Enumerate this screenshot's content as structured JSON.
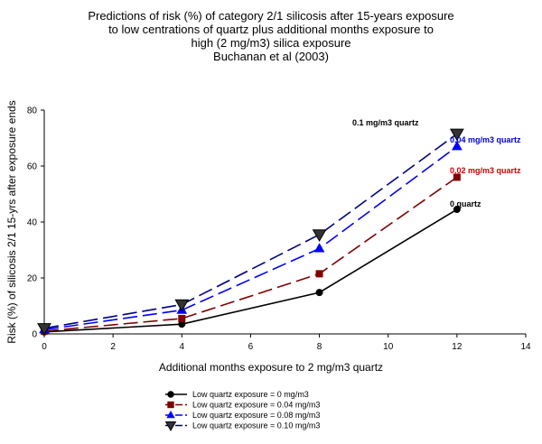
{
  "chart_data": {
    "type": "line",
    "title_lines": [
      "Predictions of risk (%) of category 2/1 silicosis after 15-years exposure",
      "to low centrations of quartz plus additional months exposure to",
      "high (2 mg/m3) silica exposure",
      "Buchanan et al (2003)"
    ],
    "xlabel": "Additional months exposure to 2 mg/m3 quartz",
    "ylabel": "Risk (%) of silicosis 2/1 15-yrs after exposure ends",
    "xlim": [
      0,
      14
    ],
    "ylim": [
      0,
      80
    ],
    "x_ticks": [
      "0",
      "2",
      "4",
      "6",
      "8",
      "10",
      "12",
      "14"
    ],
    "y_ticks": [
      "0",
      "20",
      "40",
      "60",
      "80"
    ],
    "grid": false,
    "legend_position": "bottom",
    "x": [
      0,
      4,
      8,
      12
    ],
    "series": [
      {
        "name": "Low quartz exposure = 0 mg/m3",
        "values": [
          0.7,
          3.5,
          14.8,
          44.5
        ],
        "color": "#000000",
        "marker": "circle",
        "dash": "solid"
      },
      {
        "name": "Low quartz exposure = 0.04 mg/m3",
        "values": [
          1.0,
          5.5,
          21.5,
          56.0
        ],
        "color": "#800000",
        "marker": "square",
        "dash": "long-dash"
      },
      {
        "name": "Low quartz exposure = 0.08 mg/m3",
        "values": [
          1.5,
          8.5,
          30.5,
          67.0
        ],
        "color": "#0000ff",
        "marker": "triangle-up",
        "dash": "long-dash"
      },
      {
        "name": "Low quartz exposure = 0.10 mg/m3",
        "values": [
          2.0,
          10.5,
          35.5,
          71.5
        ],
        "color": "#000080",
        "marker": "triangle-down",
        "dash": "long-dash"
      }
    ],
    "annotations": [
      {
        "text": "0.1 mg/m3 quartz",
        "color": "#000000"
      },
      {
        "text": "0.04 mg/m3 quartz",
        "color": "#0000cc"
      },
      {
        "text": "0.02 mg/m3 quartz",
        "color": "#cc0000"
      },
      {
        "text": "0 quartz",
        "color": "#000000"
      }
    ]
  }
}
